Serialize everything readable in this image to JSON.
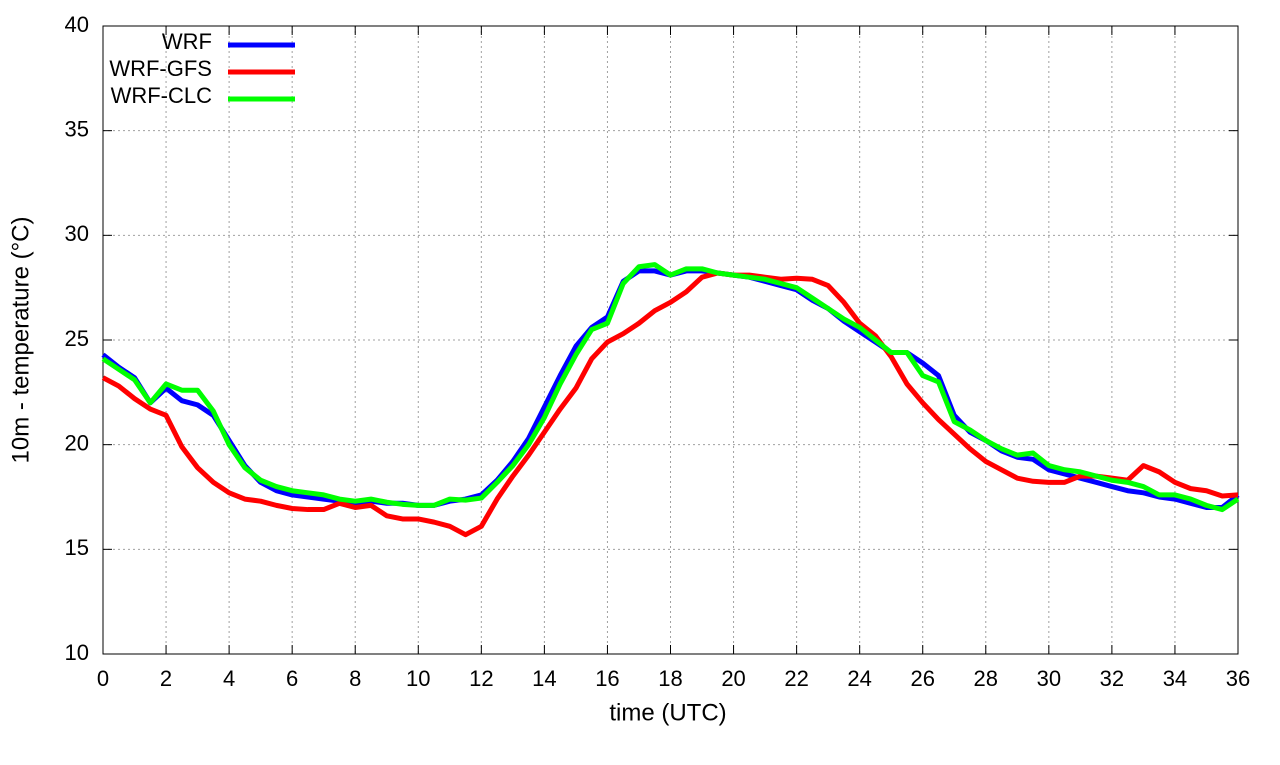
{
  "chart_data": {
    "type": "line",
    "xlabel": "time (UTC)",
    "ylabel": "10m - temperature (°C)",
    "x": [
      0,
      0.5,
      1,
      1.5,
      2,
      2.5,
      3,
      3.5,
      4,
      4.5,
      5,
      5.5,
      6,
      6.5,
      7,
      7.5,
      8,
      8.5,
      9,
      9.5,
      10,
      10.5,
      11,
      11.5,
      12,
      12.5,
      13,
      13.5,
      14,
      14.5,
      15,
      15.5,
      16,
      16.5,
      17,
      17.5,
      18,
      18.5,
      19,
      19.5,
      20,
      20.5,
      21,
      21.5,
      22,
      22.5,
      23,
      23.5,
      24,
      24.5,
      25,
      25.5,
      26,
      26.5,
      27,
      27.5,
      28,
      28.5,
      29,
      29.5,
      30,
      30.5,
      31,
      31.5,
      32,
      32.5,
      33,
      33.5,
      34,
      34.5,
      35,
      35.5,
      36
    ],
    "series": [
      {
        "name": "WRF",
        "color": "#0000ff",
        "values": [
          24.3,
          23.7,
          23.2,
          22.0,
          22.7,
          22.1,
          21.9,
          21.4,
          20.2,
          19.0,
          18.2,
          17.8,
          17.6,
          17.5,
          17.4,
          17.3,
          17.2,
          17.3,
          17.2,
          17.2,
          17.1,
          17.1,
          17.3,
          17.4,
          17.6,
          18.3,
          19.2,
          20.3,
          21.8,
          23.3,
          24.7,
          25.6,
          26.1,
          27.8,
          28.3,
          28.3,
          28.1,
          28.3,
          28.3,
          28.2,
          28.1,
          28.0,
          27.8,
          27.6,
          27.4,
          26.9,
          26.5,
          25.9,
          25.4,
          24.9,
          24.4,
          24.4,
          23.9,
          23.3,
          21.4,
          20.6,
          20.2,
          19.7,
          19.4,
          19.3,
          18.8,
          18.6,
          18.4,
          18.2,
          18.0,
          17.8,
          17.7,
          17.5,
          17.4,
          17.2,
          17.0,
          17.0,
          17.6
        ]
      },
      {
        "name": "WRF-GFS",
        "color": "#ff0000",
        "values": [
          23.2,
          22.8,
          22.2,
          21.7,
          21.4,
          19.9,
          18.9,
          18.2,
          17.7,
          17.4,
          17.3,
          17.1,
          16.95,
          16.9,
          16.9,
          17.2,
          17.0,
          17.1,
          16.6,
          16.45,
          16.45,
          16.3,
          16.1,
          15.7,
          16.1,
          17.4,
          18.5,
          19.5,
          20.6,
          21.7,
          22.7,
          24.1,
          24.9,
          25.3,
          25.8,
          26.4,
          26.8,
          27.3,
          28.0,
          28.2,
          28.1,
          28.1,
          28.0,
          27.9,
          27.95,
          27.9,
          27.6,
          26.8,
          25.8,
          25.2,
          24.2,
          22.9,
          22.0,
          21.2,
          20.5,
          19.8,
          19.2,
          18.8,
          18.4,
          18.25,
          18.2,
          18.2,
          18.5,
          18.5,
          18.4,
          18.3,
          19.0,
          18.7,
          18.2,
          17.9,
          17.8,
          17.55,
          17.6
        ]
      },
      {
        "name": "WRF-CLC",
        "color": "#00ff00",
        "values": [
          24.1,
          23.6,
          23.1,
          22.0,
          22.9,
          22.6,
          22.6,
          21.6,
          20.0,
          18.9,
          18.3,
          18.0,
          17.8,
          17.7,
          17.6,
          17.4,
          17.3,
          17.4,
          17.25,
          17.15,
          17.1,
          17.1,
          17.4,
          17.35,
          17.45,
          18.2,
          19.0,
          20.0,
          21.3,
          22.9,
          24.3,
          25.5,
          25.8,
          27.7,
          28.5,
          28.6,
          28.1,
          28.4,
          28.4,
          28.2,
          28.1,
          28.0,
          27.9,
          27.7,
          27.5,
          27.0,
          26.5,
          26.0,
          25.6,
          25.0,
          24.4,
          24.4,
          23.3,
          23.0,
          21.1,
          20.7,
          20.2,
          19.8,
          19.5,
          19.6,
          19.0,
          18.8,
          18.7,
          18.5,
          18.3,
          18.2,
          18.0,
          17.6,
          17.6,
          17.4,
          17.1,
          16.9,
          17.4
        ]
      }
    ],
    "xlim": [
      0,
      36
    ],
    "xticks": [
      0,
      2,
      4,
      6,
      8,
      10,
      12,
      14,
      16,
      18,
      20,
      22,
      24,
      26,
      28,
      30,
      32,
      34,
      36
    ],
    "ylim": [
      10,
      40
    ],
    "yticks": [
      10,
      15,
      20,
      25,
      30,
      35,
      40
    ],
    "grid": true,
    "legend": "top-left"
  }
}
